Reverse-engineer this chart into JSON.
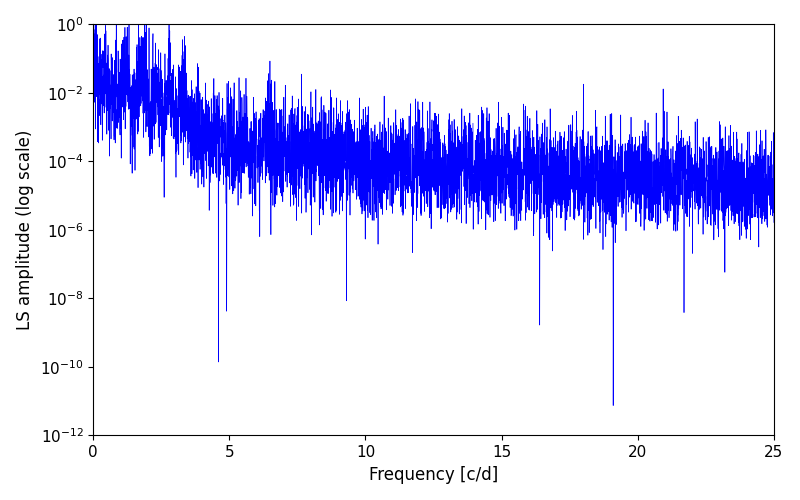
{
  "xlabel": "Frequency [c/d]",
  "ylabel": "LS amplitude (log scale)",
  "line_color": "#0000ff",
  "line_width": 0.5,
  "xlim": [
    0,
    25
  ],
  "ylim_log": [
    1e-12,
    1.0
  ],
  "figsize": [
    8.0,
    5.0
  ],
  "dpi": 100,
  "background_color": "#ffffff",
  "seed": 12345,
  "n_points": 5000,
  "freq_max": 25.0,
  "peak_freq": 0.85,
  "peak_amp": 0.22,
  "base_amp": 0.035,
  "decay_power": 1.8,
  "noise_log_std": 1.8,
  "noise_floor_base": 5e-06,
  "noise_floor_growth": 0.5
}
